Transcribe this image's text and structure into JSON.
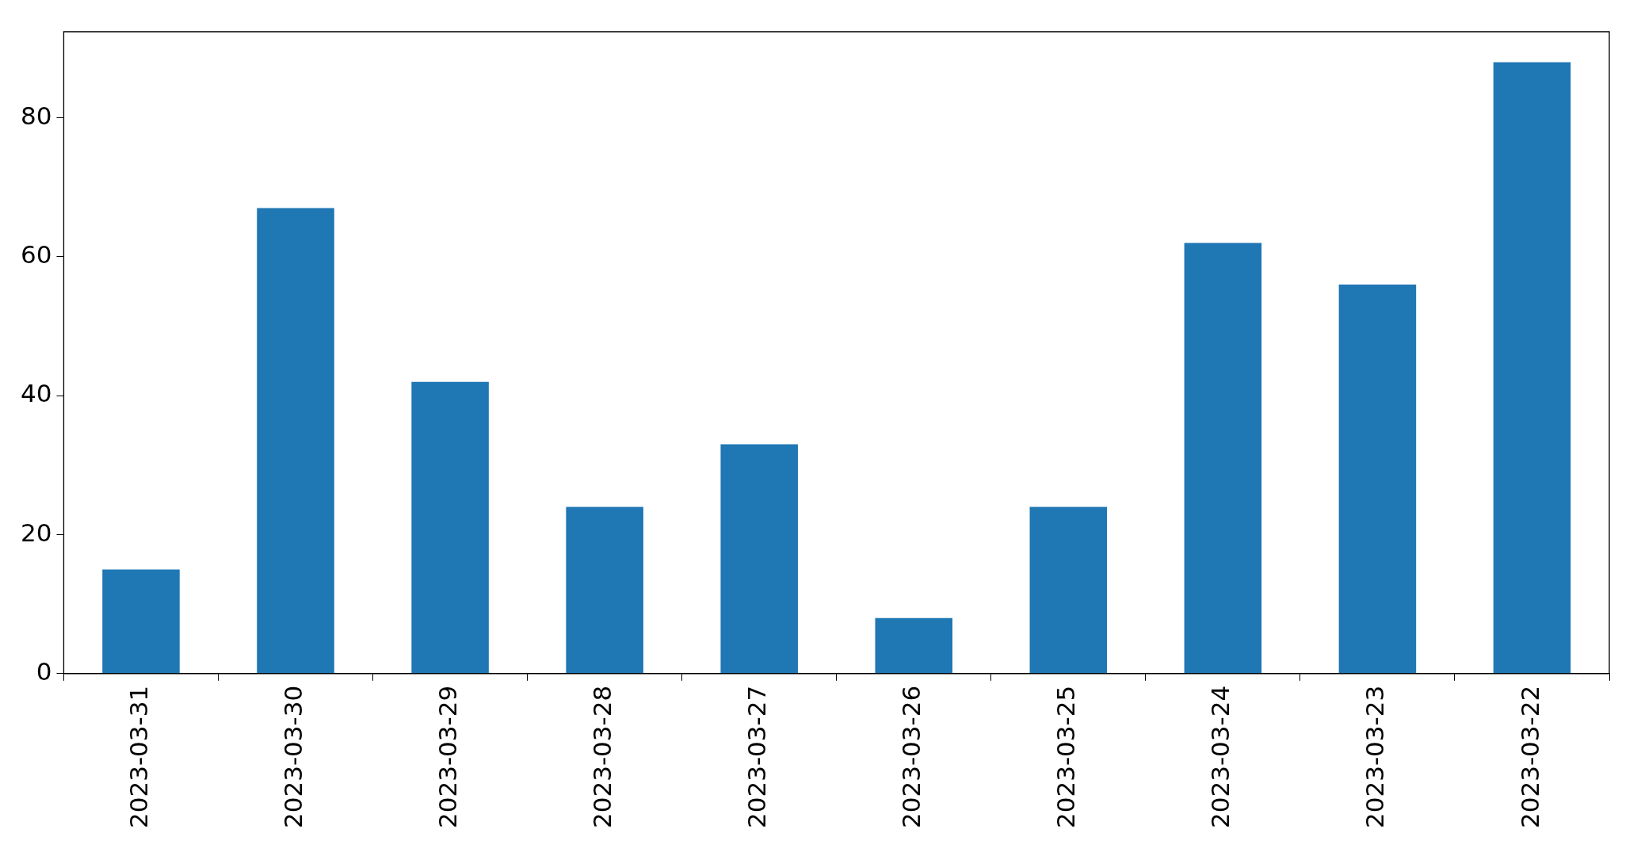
{
  "chart_data": {
    "type": "bar",
    "categories": [
      "2023-03-31",
      "2023-03-30",
      "2023-03-29",
      "2023-03-28",
      "2023-03-27",
      "2023-03-26",
      "2023-03-25",
      "2023-03-24",
      "2023-03-23",
      "2023-03-22"
    ],
    "values": [
      15,
      67,
      42,
      24,
      33,
      8,
      24,
      62,
      56,
      88
    ],
    "color": "#1f77b4",
    "ylim": [
      0,
      92.4
    ],
    "yticks": [
      0,
      20,
      40,
      60,
      80
    ]
  }
}
